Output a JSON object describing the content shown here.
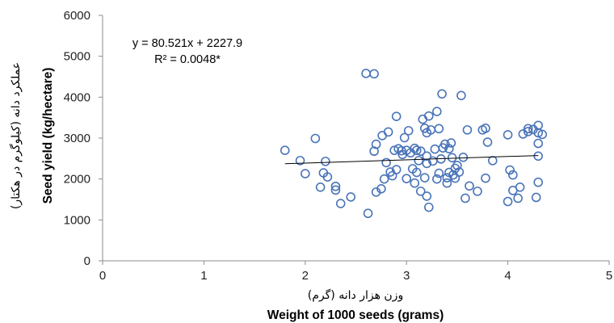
{
  "chart_data": {
    "type": "scatter",
    "xlabel_fa": "وزن هزار دانه (گرم)",
    "xlabel_en": "Weight of 1000 seeds (grams)",
    "ylabel_fa": "عملکرد دانه (کیلوگرم در هکتار)",
    "ylabel_en": "Seed yield (kg/hectare)",
    "xlim": [
      0,
      5
    ],
    "ylim": [
      0,
      6000
    ],
    "x_ticks": [
      "0",
      "1",
      "2",
      "3",
      "4",
      "5"
    ],
    "y_ticks": [
      "0",
      "1000",
      "2000",
      "3000",
      "4000",
      "5000",
      "6000"
    ],
    "grid": false,
    "marker_color": "#4a74b8",
    "trendline": {
      "type": "linear",
      "slope": 80.521,
      "intercept": 2227.9,
      "x_range": [
        1.8,
        4.3
      ],
      "color": "#000000",
      "equation": "y = 80.521x + 2227.9",
      "r_squared": "R² = 0.0048*"
    },
    "points": [
      [
        1.8,
        2700
      ],
      [
        1.95,
        2450
      ],
      [
        2.0,
        2130
      ],
      [
        2.1,
        2990
      ],
      [
        2.15,
        1800
      ],
      [
        2.18,
        2150
      ],
      [
        2.2,
        2430
      ],
      [
        2.22,
        2050
      ],
      [
        2.3,
        1820
      ],
      [
        2.3,
        1730
      ],
      [
        2.35,
        1400
      ],
      [
        2.45,
        1560
      ],
      [
        2.6,
        4580
      ],
      [
        2.62,
        1160
      ],
      [
        2.68,
        4570
      ],
      [
        2.68,
        2680
      ],
      [
        2.7,
        2850
      ],
      [
        2.7,
        1680
      ],
      [
        2.75,
        1760
      ],
      [
        2.76,
        3060
      ],
      [
        2.78,
        2000
      ],
      [
        2.8,
        2400
      ],
      [
        2.82,
        3150
      ],
      [
        2.84,
        2170
      ],
      [
        2.86,
        2080
      ],
      [
        2.88,
        2700
      ],
      [
        2.9,
        2230
      ],
      [
        2.9,
        3530
      ],
      [
        2.92,
        2740
      ],
      [
        2.95,
        2690
      ],
      [
        2.96,
        2600
      ],
      [
        2.98,
        3010
      ],
      [
        3.0,
        2010
      ],
      [
        3.0,
        2700
      ],
      [
        3.02,
        3180
      ],
      [
        3.04,
        2640
      ],
      [
        3.06,
        2250
      ],
      [
        3.08,
        2750
      ],
      [
        3.08,
        1900
      ],
      [
        3.1,
        2700
      ],
      [
        3.1,
        2160
      ],
      [
        3.12,
        2450
      ],
      [
        3.14,
        2680
      ],
      [
        3.14,
        1700
      ],
      [
        3.16,
        3460
      ],
      [
        3.18,
        3240
      ],
      [
        3.18,
        2030
      ],
      [
        3.2,
        2560
      ],
      [
        3.2,
        3130
      ],
      [
        3.2,
        2380
      ],
      [
        3.2,
        1580
      ],
      [
        3.22,
        3540
      ],
      [
        3.22,
        1310
      ],
      [
        3.24,
        3200
      ],
      [
        3.26,
        2440
      ],
      [
        3.28,
        2730
      ],
      [
        3.3,
        2000
      ],
      [
        3.3,
        3650
      ],
      [
        3.32,
        3230
      ],
      [
        3.32,
        2140
      ],
      [
        3.34,
        2490
      ],
      [
        3.35,
        4080
      ],
      [
        3.36,
        2760
      ],
      [
        3.38,
        2850
      ],
      [
        3.4,
        2030
      ],
      [
        3.4,
        1900
      ],
      [
        3.42,
        2740
      ],
      [
        3.42,
        2160
      ],
      [
        3.44,
        2880
      ],
      [
        3.45,
        2520
      ],
      [
        3.46,
        2100
      ],
      [
        3.48,
        2260
      ],
      [
        3.48,
        2020
      ],
      [
        3.5,
        2330
      ],
      [
        3.52,
        2170
      ],
      [
        3.54,
        4040
      ],
      [
        3.56,
        2530
      ],
      [
        3.58,
        1530
      ],
      [
        3.6,
        3200
      ],
      [
        3.62,
        1830
      ],
      [
        3.7,
        1700
      ],
      [
        3.75,
        3200
      ],
      [
        3.78,
        3240
      ],
      [
        3.78,
        2020
      ],
      [
        3.8,
        2900
      ],
      [
        3.85,
        2450
      ],
      [
        4.0,
        3080
      ],
      [
        4.0,
        1450
      ],
      [
        4.02,
        2220
      ],
      [
        4.05,
        2100
      ],
      [
        4.05,
        1720
      ],
      [
        4.1,
        1530
      ],
      [
        4.12,
        1800
      ],
      [
        4.15,
        3100
      ],
      [
        4.2,
        3160
      ],
      [
        4.2,
        3230
      ],
      [
        4.25,
        3210
      ],
      [
        4.28,
        1550
      ],
      [
        4.3,
        3310
      ],
      [
        4.3,
        3130
      ],
      [
        4.3,
        2870
      ],
      [
        4.3,
        1920
      ],
      [
        4.3,
        2560
      ],
      [
        4.34,
        3090
      ]
    ]
  }
}
